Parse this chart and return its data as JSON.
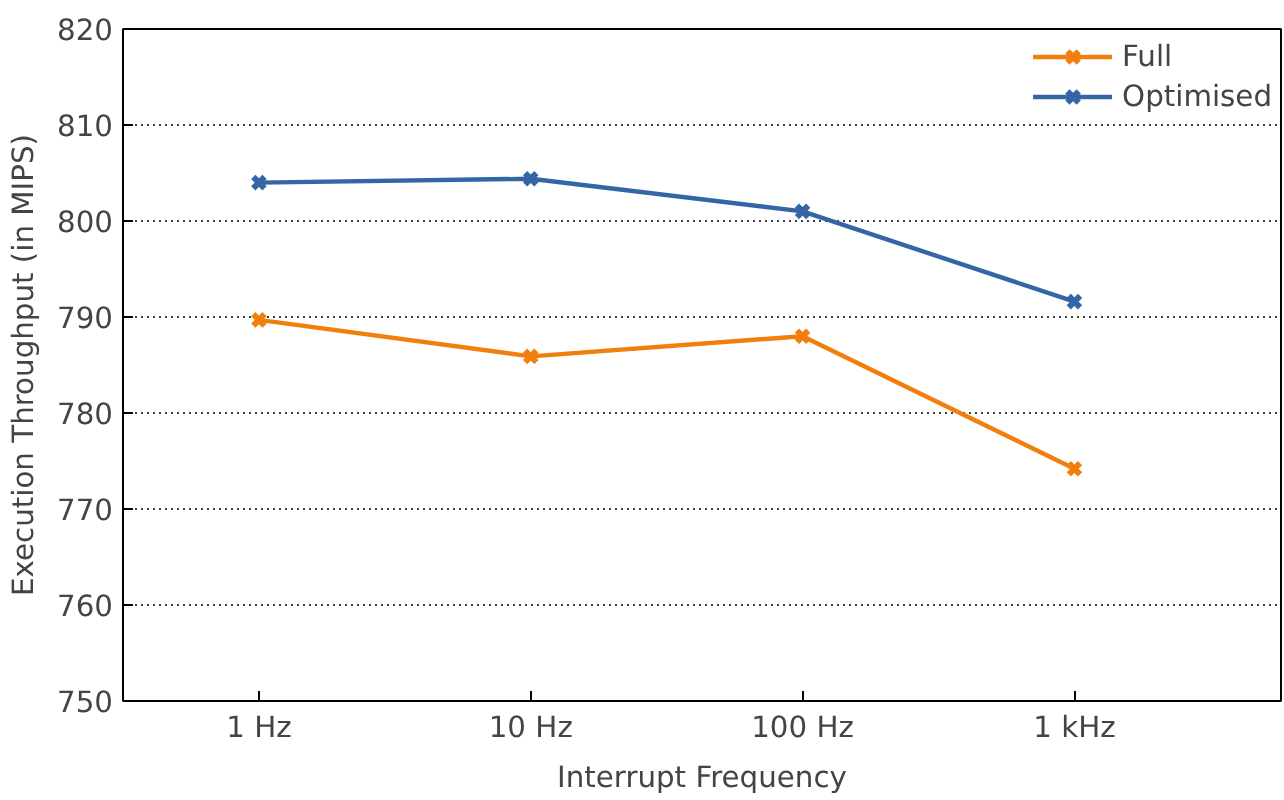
{
  "chart_data": {
    "type": "line",
    "xlabel": "Interrupt Frequency",
    "ylabel": "Execution Throughput (in MIPS)",
    "categories": [
      "1 Hz",
      "10 Hz",
      "100 Hz",
      "1 kHz"
    ],
    "series": [
      {
        "name": "Full",
        "color": "#f07f0e",
        "values": [
          789.7,
          785.9,
          788.0,
          774.2
        ]
      },
      {
        "name": "Optimised",
        "color": "#3465a4",
        "values": [
          804.0,
          804.4,
          801.0,
          791.6
        ]
      }
    ],
    "ylim": [
      750,
      820
    ],
    "yticks": [
      750,
      760,
      770,
      780,
      790,
      800,
      810,
      820
    ],
    "grid": "y",
    "legend": "top right",
    "marker": "cross",
    "line_style": "solid"
  }
}
